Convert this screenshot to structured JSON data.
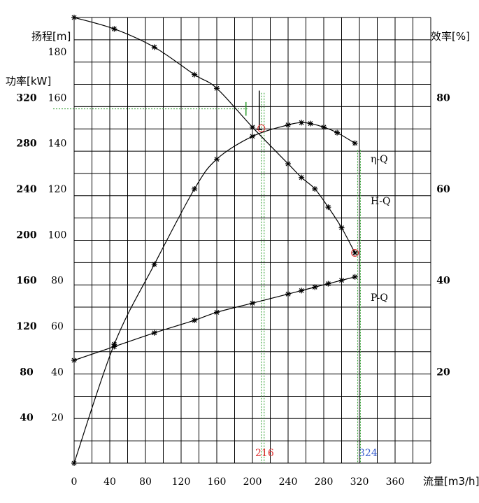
{
  "chart_data": {
    "type": "line",
    "xlabel": "流量[m3/h]",
    "ylabels": {
      "head": "扬程[m]",
      "power": "功率[kW]",
      "efficiency": "效率[%]"
    },
    "x_ticks": [
      "0",
      "40",
      "80",
      "120",
      "160",
      "200",
      "240",
      "280",
      "320",
      "360"
    ],
    "head_ticks": [
      "20",
      "40",
      "60",
      "80",
      "100",
      "120",
      "140",
      "160",
      "180"
    ],
    "power_ticks": [
      "40",
      "80",
      "120",
      "160",
      "200",
      "240",
      "280",
      "320"
    ],
    "eff_ticks": [
      "20",
      "40",
      "60",
      "80"
    ],
    "xlim": [
      0,
      400
    ],
    "head_ylim": [
      0,
      195
    ],
    "power_ylim": [
      0,
      390
    ],
    "eff_ylim": [
      0,
      97.5
    ],
    "grid": true,
    "series": [
      {
        "name": "H-Q",
        "axis": "head",
        "x": [
          0,
          45,
          90,
          135,
          160,
          200,
          240,
          255,
          270,
          285,
          300,
          315
        ],
        "y": [
          195,
          190,
          182,
          170,
          164,
          147,
          131,
          125,
          120,
          112,
          103,
          92
        ]
      },
      {
        "name": "η-Q",
        "axis": "efficiency",
        "x": [
          0,
          45,
          90,
          135,
          160,
          200,
          240,
          255,
          265,
          280,
          295,
          315
        ],
        "y": [
          0,
          26,
          43.5,
          60,
          66.5,
          71.5,
          74,
          74.5,
          74.3,
          73.5,
          72.3,
          70
        ]
      },
      {
        "name": "P-Q",
        "axis": "power",
        "x": [
          0,
          45,
          90,
          135,
          160,
          200,
          240,
          255,
          270,
          285,
          300,
          315
        ],
        "y": [
          90,
          102,
          114,
          125,
          132,
          140,
          148,
          151,
          154,
          157,
          160,
          163
        ]
      }
    ],
    "markers": {
      "x_mark_1": "216",
      "x_mark_2": "324"
    }
  }
}
